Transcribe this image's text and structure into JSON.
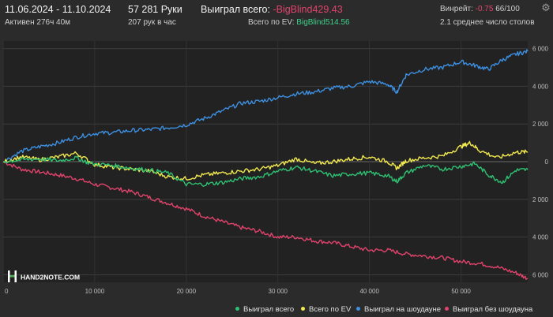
{
  "header": {
    "date_range": "11.06.2024 - 11.10.2024",
    "active": "Активен 276ч 40м",
    "hands": "57 281 Руки",
    "hands_per_hour": "207 рук в час",
    "won_label": "Выиграл всего:",
    "won_value": "-BigBlind429.43",
    "ev_label": "Всего по EV:",
    "ev_value": "BigBlind514.56",
    "winrate_label": "Винрейт:",
    "winrate_value": "-0.75",
    "winrate_unit": "66/100",
    "avg_tables": "2.1 среднее число столов"
  },
  "logo_text": "HAND2NOTE.COM",
  "legend": [
    {
      "label": "Выиграл всего",
      "color": "#2fbf71"
    },
    {
      "label": "Всего по EV",
      "color": "#f2e94e"
    },
    {
      "label": "Выиграл на шоудауне",
      "color": "#3d8fe0"
    },
    {
      "label": "Выиграл без шоудауна",
      "color": "#e0436b"
    }
  ],
  "chart_data": {
    "type": "line",
    "x_ticks": [
      "0",
      "10 000",
      "20 000",
      "30 000",
      "40 000",
      "50 000"
    ],
    "y_ticks": [
      "6 000",
      "4 000",
      "2 000",
      "0",
      "2 000",
      "4 000",
      "6 000"
    ],
    "xlim": [
      0,
      57281
    ],
    "ylim": [
      -6400,
      6400
    ],
    "grid": true,
    "series": [
      {
        "name": "Выиграл всего",
        "color": "#2fbf71",
        "points": [
          [
            0,
            0
          ],
          [
            2000,
            100
          ],
          [
            4000,
            150
          ],
          [
            6000,
            50
          ],
          [
            8000,
            200
          ],
          [
            9500,
            -100
          ],
          [
            12000,
            -200
          ],
          [
            14000,
            -350
          ],
          [
            16000,
            -450
          ],
          [
            18000,
            -600
          ],
          [
            20000,
            -1200
          ],
          [
            22000,
            -1200
          ],
          [
            24000,
            -1100
          ],
          [
            26000,
            -900
          ],
          [
            28000,
            -800
          ],
          [
            30000,
            -500
          ],
          [
            32000,
            -300
          ],
          [
            34000,
            -500
          ],
          [
            36000,
            -750
          ],
          [
            38000,
            -650
          ],
          [
            40000,
            -600
          ],
          [
            42000,
            -750
          ],
          [
            43000,
            -1050
          ],
          [
            44000,
            -600
          ],
          [
            46000,
            -200
          ],
          [
            48000,
            -400
          ],
          [
            50000,
            -250
          ],
          [
            51500,
            -100
          ],
          [
            53000,
            -700
          ],
          [
            54500,
            -1100
          ],
          [
            56000,
            -450
          ],
          [
            57281,
            -430
          ]
        ]
      },
      {
        "name": "Всего по EV",
        "color": "#f2e94e",
        "points": [
          [
            0,
            0
          ],
          [
            2000,
            250
          ],
          [
            4000,
            100
          ],
          [
            6000,
            250
          ],
          [
            8000,
            450
          ],
          [
            10000,
            -150
          ],
          [
            12000,
            -300
          ],
          [
            14000,
            -400
          ],
          [
            16000,
            -500
          ],
          [
            18000,
            -800
          ],
          [
            20000,
            -900
          ],
          [
            22000,
            -700
          ],
          [
            24000,
            -600
          ],
          [
            26000,
            -500
          ],
          [
            28000,
            -400
          ],
          [
            30000,
            -200
          ],
          [
            32000,
            150
          ],
          [
            34000,
            -100
          ],
          [
            36000,
            0
          ],
          [
            38000,
            150
          ],
          [
            40000,
            250
          ],
          [
            42000,
            0
          ],
          [
            43000,
            -350
          ],
          [
            44000,
            50
          ],
          [
            46000,
            200
          ],
          [
            48000,
            300
          ],
          [
            50000,
            800
          ],
          [
            51000,
            1000
          ],
          [
            52000,
            600
          ],
          [
            54000,
            200
          ],
          [
            56000,
            500
          ],
          [
            57281,
            515
          ]
        ]
      },
      {
        "name": "Выиграл на шоудауне",
        "color": "#3d8fe0",
        "points": [
          [
            0,
            0
          ],
          [
            2000,
            550
          ],
          [
            4000,
            800
          ],
          [
            6000,
            1000
          ],
          [
            8000,
            1300
          ],
          [
            10000,
            1500
          ],
          [
            12000,
            1550
          ],
          [
            14000,
            1650
          ],
          [
            16000,
            1700
          ],
          [
            18000,
            1800
          ],
          [
            20000,
            1950
          ],
          [
            22000,
            2300
          ],
          [
            24000,
            2700
          ],
          [
            26000,
            3100
          ],
          [
            28000,
            3200
          ],
          [
            30000,
            3400
          ],
          [
            32000,
            3600
          ],
          [
            34000,
            3700
          ],
          [
            36000,
            3900
          ],
          [
            38000,
            4000
          ],
          [
            40000,
            4250
          ],
          [
            42000,
            4100
          ],
          [
            43000,
            3700
          ],
          [
            44000,
            4600
          ],
          [
            46000,
            4900
          ],
          [
            48000,
            5000
          ],
          [
            50000,
            5300
          ],
          [
            51500,
            5100
          ],
          [
            53000,
            4900
          ],
          [
            54500,
            5400
          ],
          [
            56000,
            5700
          ],
          [
            57281,
            5850
          ]
        ]
      },
      {
        "name": "Выиграл без шоудауна",
        "color": "#e0436b",
        "points": [
          [
            0,
            0
          ],
          [
            2000,
            -400
          ],
          [
            4000,
            -550
          ],
          [
            6000,
            -700
          ],
          [
            8000,
            -900
          ],
          [
            10000,
            -1200
          ],
          [
            12000,
            -1400
          ],
          [
            14000,
            -1600
          ],
          [
            16000,
            -1900
          ],
          [
            18000,
            -2200
          ],
          [
            20000,
            -2500
          ],
          [
            22000,
            -2900
          ],
          [
            24000,
            -3200
          ],
          [
            26000,
            -3500
          ],
          [
            28000,
            -3700
          ],
          [
            30000,
            -4000
          ],
          [
            32000,
            -4000
          ],
          [
            34000,
            -4200
          ],
          [
            36000,
            -4300
          ],
          [
            38000,
            -4500
          ],
          [
            40000,
            -4700
          ],
          [
            42000,
            -4700
          ],
          [
            44000,
            -4900
          ],
          [
            46000,
            -5000
          ],
          [
            48000,
            -5100
          ],
          [
            50000,
            -5300
          ],
          [
            52000,
            -5400
          ],
          [
            54000,
            -5600
          ],
          [
            56000,
            -5900
          ],
          [
            57281,
            -6200
          ]
        ]
      }
    ]
  }
}
